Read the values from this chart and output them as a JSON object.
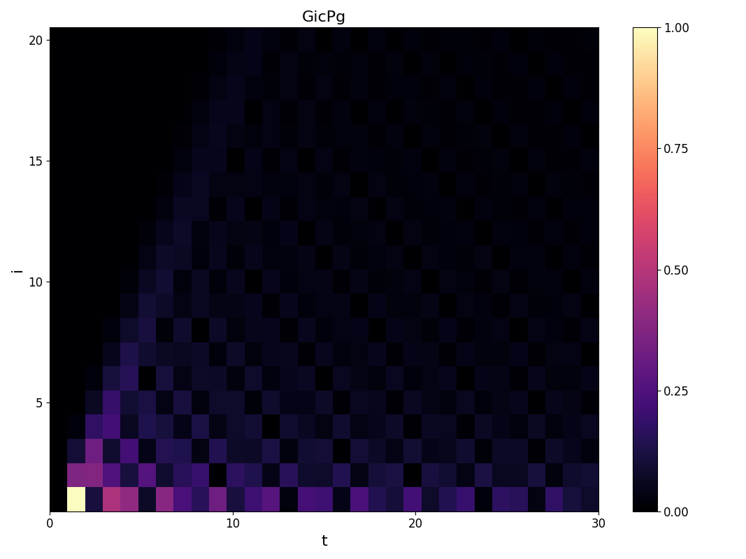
{
  "title": "GicPg",
  "xlabel": "t",
  "ylabel": "i",
  "t_min": 0,
  "t_max": 30,
  "t_steps": 31,
  "i_min": 1,
  "i_max": 20,
  "cmap": "magma",
  "vmin": 0,
  "vmax": 1,
  "figsize": [
    10.67,
    8.0
  ],
  "dpi": 100,
  "title_fontsize": 16,
  "axis_label_fontsize": 16,
  "tick_fontsize": 12,
  "background_color": "#ffffff"
}
